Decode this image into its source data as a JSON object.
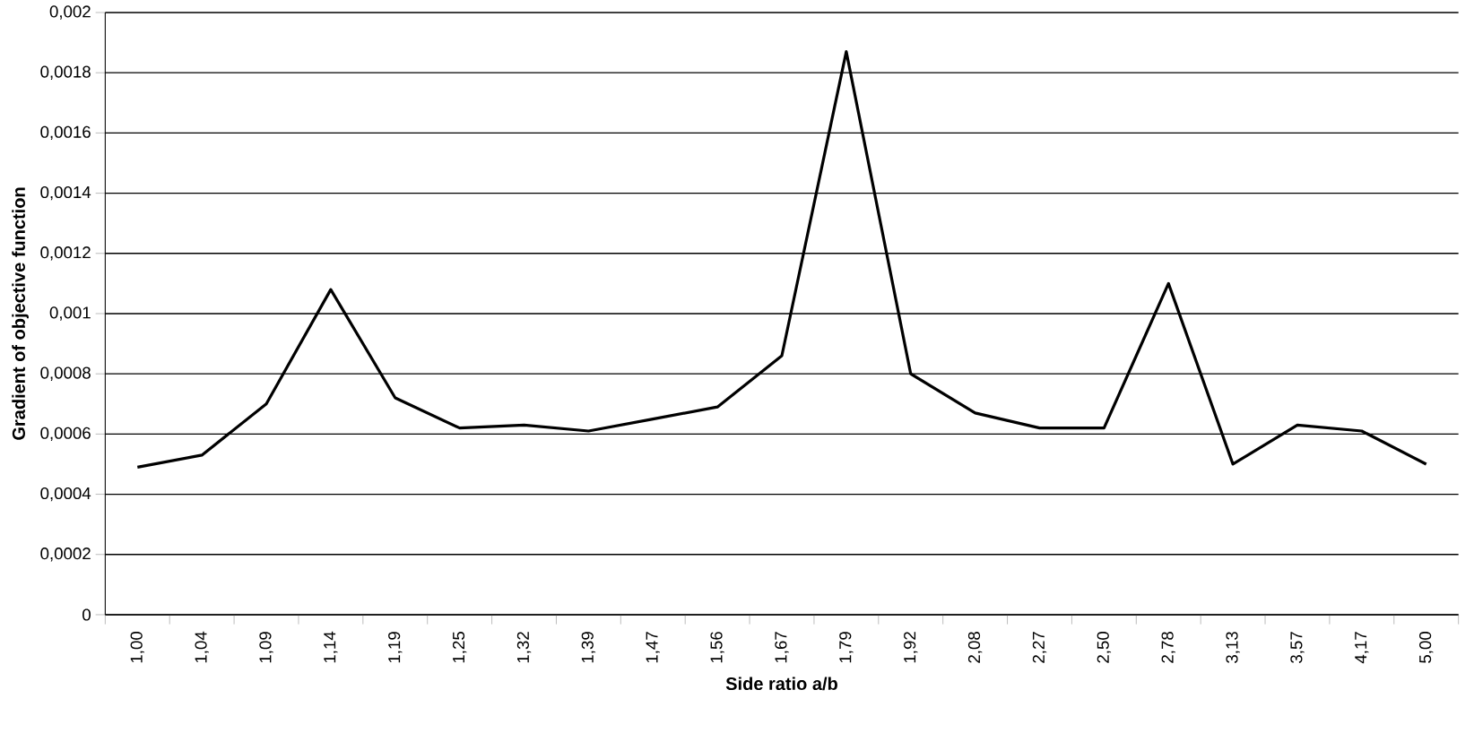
{
  "chart_data": {
    "type": "line",
    "xlabel": "Side ratio a/b",
    "ylabel": "Gradient of objective function",
    "categories": [
      "1,00",
      "1,04",
      "1,09",
      "1,14",
      "1,19",
      "1,25",
      "1,32",
      "1,39",
      "1,47",
      "1,56",
      "1,67",
      "1,79",
      "1,92",
      "2,08",
      "2,27",
      "2,50",
      "2,78",
      "3,13",
      "3,57",
      "4,17",
      "5,00"
    ],
    "series": [
      {
        "color": "#000000",
        "values": [
          0.00049,
          0.00053,
          0.0007,
          0.00108,
          0.00072,
          0.00062,
          0.00063,
          0.00061,
          0.00065,
          0.00069,
          0.00086,
          0.00187,
          0.0008,
          0.00067,
          0.00062,
          0.00062,
          0.0011,
          0.0005,
          0.00063,
          0.00061,
          0.0005
        ]
      }
    ],
    "ylim": [
      0,
      0.002
    ],
    "yticks": [
      0,
      {
        "value": 0.0002,
        "label": "0,0002"
      },
      {
        "value": 0.0004,
        "label": "0,0004"
      },
      {
        "value": 0.0006,
        "label": "0,0006"
      },
      {
        "value": 0.0008,
        "label": "0,0008"
      },
      {
        "value": 0.001,
        "label": "0,001"
      },
      {
        "value": 0.0012,
        "label": "0,0012"
      },
      {
        "value": 0.0014,
        "label": "0,0014"
      },
      {
        "value": 0.0016,
        "label": "0,0016"
      },
      {
        "value": 0.0018,
        "label": "0,0018"
      },
      {
        "value": 0.002,
        "label": "0,002"
      }
    ],
    "grid": "y",
    "marker": "none",
    "line_style": "solid"
  }
}
